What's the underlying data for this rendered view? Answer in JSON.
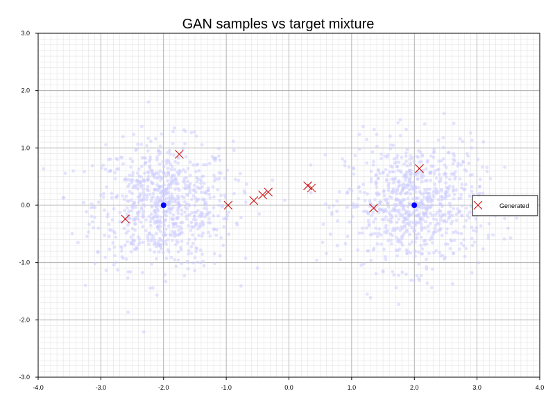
{
  "chart_data": {
    "type": "scatter",
    "title": "GAN samples vs target mixture",
    "xlabel": "",
    "ylabel": "",
    "xlim": [
      -4.0,
      4.0
    ],
    "ylim": [
      -3.0,
      3.0
    ],
    "x_ticks": [
      "-4.0",
      "-3.0",
      "-2.0",
      "-1.0",
      "0.0",
      "1.0",
      "2.0",
      "3.0",
      "4.0"
    ],
    "y_ticks": [
      "-3.0",
      "-2.0",
      "-1.0",
      "0.0",
      "1.0",
      "2.0",
      "3.0"
    ],
    "grid": true,
    "legend": {
      "position": "right",
      "entries": [
        "Generated"
      ]
    },
    "target": {
      "centers": [
        [
          -2.0,
          0.0
        ],
        [
          2.0,
          0.0
        ]
      ],
      "std": 0.55,
      "samples_per_mode": 800,
      "color": "#ccccff",
      "center_color": "#0000ff"
    },
    "series": [
      {
        "name": "Generated",
        "marker": "x",
        "color": "#cc0000",
        "points": [
          [
            -2.61,
            -0.24
          ],
          [
            -1.75,
            0.89
          ],
          [
            -0.97,
            0.0
          ],
          [
            -0.56,
            0.08
          ],
          [
            -0.42,
            0.18
          ],
          [
            -0.33,
            0.23
          ],
          [
            0.3,
            0.34
          ],
          [
            0.36,
            0.3
          ],
          [
            1.35,
            -0.05
          ],
          [
            2.08,
            0.64
          ]
        ]
      }
    ]
  },
  "colors": {
    "grid_major": "#a0a0a0",
    "grid_minor": "#dddddd",
    "axis": "#000000"
  }
}
